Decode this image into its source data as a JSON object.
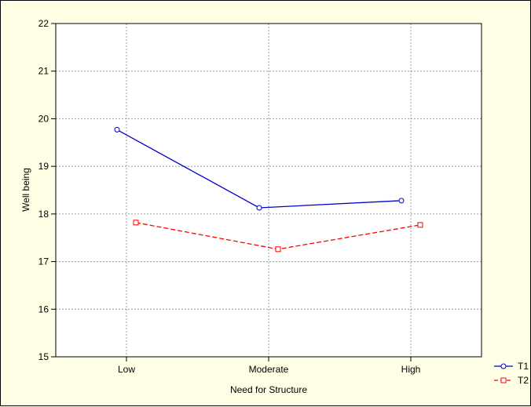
{
  "chart_data": {
    "type": "line",
    "xlabel": "Need for Structure",
    "ylabel": "Well being",
    "categories": [
      "Low",
      "Moderate",
      "High"
    ],
    "ylim": [
      15,
      22
    ],
    "yticks": [
      15,
      16,
      17,
      18,
      19,
      20,
      21,
      22
    ],
    "grid": true,
    "legend_position": "bottom-right, outside plot",
    "series": [
      {
        "name": "T1",
        "values": [
          19.77,
          18.13,
          18.28
        ],
        "color": "#0000cc",
        "line_style": "solid",
        "marker": "circle"
      },
      {
        "name": "T2",
        "values": [
          17.82,
          17.26,
          17.77
        ],
        "color": "#ff0000",
        "line_style": "dashed",
        "marker": "square"
      }
    ]
  }
}
